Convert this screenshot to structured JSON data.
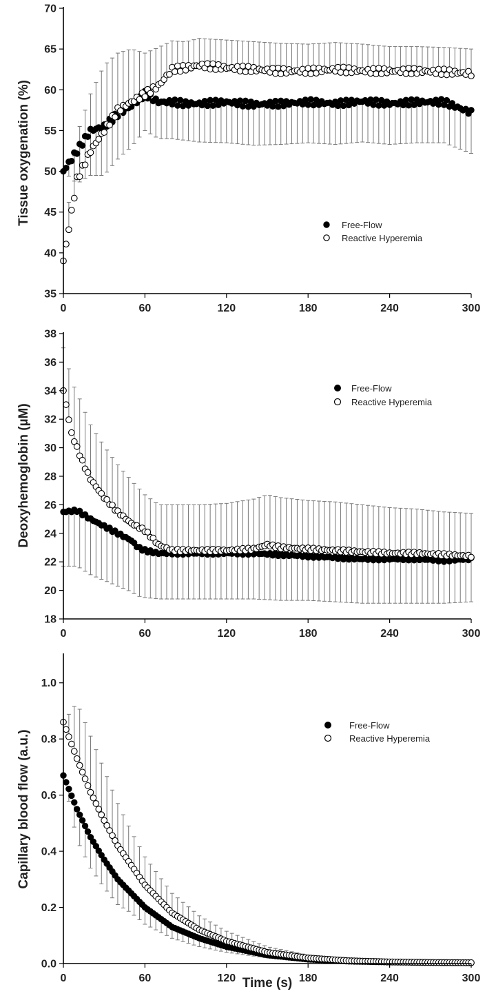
{
  "figure": {
    "shared_xlabel": "Time (s)"
  },
  "chart_data": [
    {
      "id": "tissue-oxygenation",
      "type": "scatter",
      "title": "",
      "ylabel": "Tissue oxygenation (%)",
      "xlabel": "",
      "xlim": [
        0,
        300
      ],
      "ylim": [
        35,
        70
      ],
      "xticks": [
        0,
        60,
        120,
        180,
        240,
        300
      ],
      "yticks": [
        35,
        40,
        45,
        50,
        55,
        60,
        65,
        70
      ],
      "legend_position": "center-right",
      "series": [
        {
          "name": "Free-Flow",
          "marker": "filled-circle",
          "x": [
            0,
            10,
            20,
            30,
            40,
            50,
            60,
            70,
            80,
            90,
            100,
            120,
            140,
            160,
            180,
            200,
            220,
            240,
            260,
            280,
            300
          ],
          "y": [
            50,
            52.5,
            55,
            55.5,
            57,
            58,
            59.5,
            58.5,
            58.5,
            58.3,
            58.3,
            58.5,
            58.2,
            58.3,
            58.5,
            58.3,
            58.6,
            58.3,
            58.5,
            58.5,
            57.2
          ],
          "error": [
            0,
            4,
            5.5,
            6,
            5.5,
            5,
            4.5,
            4.5,
            4.5,
            4.5,
            4.7,
            5,
            5,
            5,
            5,
            5,
            5,
            5,
            5,
            5,
            5
          ]
        },
        {
          "name": "Reactive Hyperemia",
          "marker": "open-circle",
          "x": [
            0,
            5,
            10,
            20,
            30,
            40,
            50,
            60,
            70,
            80,
            90,
            100,
            120,
            140,
            160,
            180,
            200,
            220,
            240,
            260,
            280,
            300
          ],
          "y": [
            39,
            44,
            49,
            52.5,
            55,
            57.5,
            58.5,
            59.5,
            60.5,
            62.5,
            62.7,
            63,
            62.7,
            62.5,
            62.3,
            62.3,
            62.5,
            62.3,
            62.3,
            62.3,
            62.2,
            62
          ],
          "error": [
            0,
            4,
            5.5,
            7,
            8,
            7,
            6.5,
            5,
            4.7,
            3.5,
            3.2,
            3.3,
            3.4,
            3.4,
            3.4,
            3.3,
            3.3,
            3.3,
            3,
            3,
            3,
            3
          ]
        }
      ]
    },
    {
      "id": "deoxyhemoglobin",
      "type": "scatter",
      "title": "",
      "ylabel": "Deoxyhemoglobin (µM)",
      "xlabel": "",
      "xlim": [
        0,
        300
      ],
      "ylim": [
        18,
        38
      ],
      "xticks": [
        0,
        60,
        120,
        180,
        240,
        300
      ],
      "yticks": [
        18,
        20,
        22,
        24,
        26,
        28,
        30,
        32,
        34,
        36,
        38
      ],
      "legend_position": "top-right",
      "series": [
        {
          "name": "Free-Flow",
          "marker": "filled-circle",
          "x": [
            0,
            10,
            20,
            30,
            40,
            50,
            55,
            60,
            70,
            80,
            90,
            100,
            120,
            140,
            160,
            180,
            200,
            220,
            240,
            260,
            280,
            300
          ],
          "y": [
            25.5,
            25.6,
            25,
            24.5,
            24,
            23.5,
            23,
            22.8,
            22.6,
            22.6,
            22.6,
            22.6,
            22.6,
            22.6,
            22.5,
            22.4,
            22.3,
            22.2,
            22.2,
            22.2,
            22.1,
            22.2
          ],
          "error": [
            3.8,
            3.9,
            3.9,
            3.8,
            3.7,
            3.6,
            3.4,
            3.3,
            3.2,
            3.2,
            3.2,
            3.2,
            3.2,
            3.2,
            3.2,
            3.1,
            3.1,
            3.1,
            3.1,
            3.1,
            3,
            3
          ]
        },
        {
          "name": "Reactive Hyperemia",
          "marker": "open-circle",
          "x": [
            0,
            3,
            6,
            10,
            15,
            20,
            30,
            40,
            50,
            60,
            70,
            80,
            90,
            100,
            120,
            140,
            150,
            160,
            180,
            200,
            220,
            240,
            260,
            280,
            300
          ],
          "y": [
            34,
            32.5,
            31,
            30,
            28.8,
            27.8,
            26.5,
            25.5,
            24.7,
            24.2,
            23.2,
            22.8,
            22.8,
            22.8,
            22.8,
            22.9,
            23.2,
            23,
            22.9,
            22.8,
            22.7,
            22.6,
            22.6,
            22.5,
            22.4
          ],
          "error": [
            3,
            3.5,
            3.6,
            3.9,
            3.9,
            3.8,
            3.6,
            3.3,
            3,
            2.5,
            2.8,
            3.2,
            3.2,
            3.2,
            3.3,
            3.5,
            3.5,
            3.5,
            3.4,
            3.4,
            3.3,
            3.2,
            3.1,
            3,
            3
          ]
        }
      ]
    },
    {
      "id": "capillary-blood-flow",
      "type": "scatter",
      "title": "",
      "ylabel": "Capillary blood flow (a.u.)",
      "xlabel": "Time (s)",
      "xlim": [
        0,
        300
      ],
      "ylim": [
        0,
        1.1
      ],
      "xticks": [
        0,
        60,
        120,
        180,
        240,
        300
      ],
      "yticks": [
        0.0,
        0.2,
        0.4,
        0.6,
        0.8,
        1.0
      ],
      "ytick_labels": [
        "0.0",
        "0.2",
        "0.4",
        "0.6",
        "0.8",
        "1.0"
      ],
      "legend_position": "center-right",
      "series": [
        {
          "name": "Free-Flow",
          "marker": "filled-circle",
          "x": [
            0,
            10,
            20,
            30,
            40,
            50,
            60,
            80,
            100,
            120,
            150,
            180,
            210,
            240,
            270,
            300
          ],
          "y": [
            0.67,
            0.55,
            0.45,
            0.37,
            0.3,
            0.25,
            0.2,
            0.13,
            0.09,
            0.06,
            0.03,
            0.015,
            0.008,
            0.005,
            0.003,
            0.002
          ],
          "error": [
            0,
            0.11,
            0.11,
            0.1,
            0.09,
            0.07,
            0.06,
            0.04,
            0.03,
            0.02,
            0.01,
            0.005,
            0.003,
            0.002,
            0.001,
            0.001
          ]
        },
        {
          "name": "Reactive Hyperemia",
          "marker": "open-circle",
          "x": [
            0,
            10,
            20,
            30,
            40,
            50,
            60,
            80,
            100,
            120,
            150,
            180,
            210,
            240,
            270,
            300
          ],
          "y": [
            0.86,
            0.73,
            0.61,
            0.51,
            0.42,
            0.35,
            0.28,
            0.18,
            0.12,
            0.08,
            0.04,
            0.02,
            0.01,
            0.006,
            0.004,
            0.003
          ],
          "error": [
            0,
            0.2,
            0.2,
            0.18,
            0.15,
            0.12,
            0.1,
            0.07,
            0.05,
            0.035,
            0.02,
            0.01,
            0.005,
            0.003,
            0.002,
            0.001
          ]
        }
      ]
    }
  ]
}
